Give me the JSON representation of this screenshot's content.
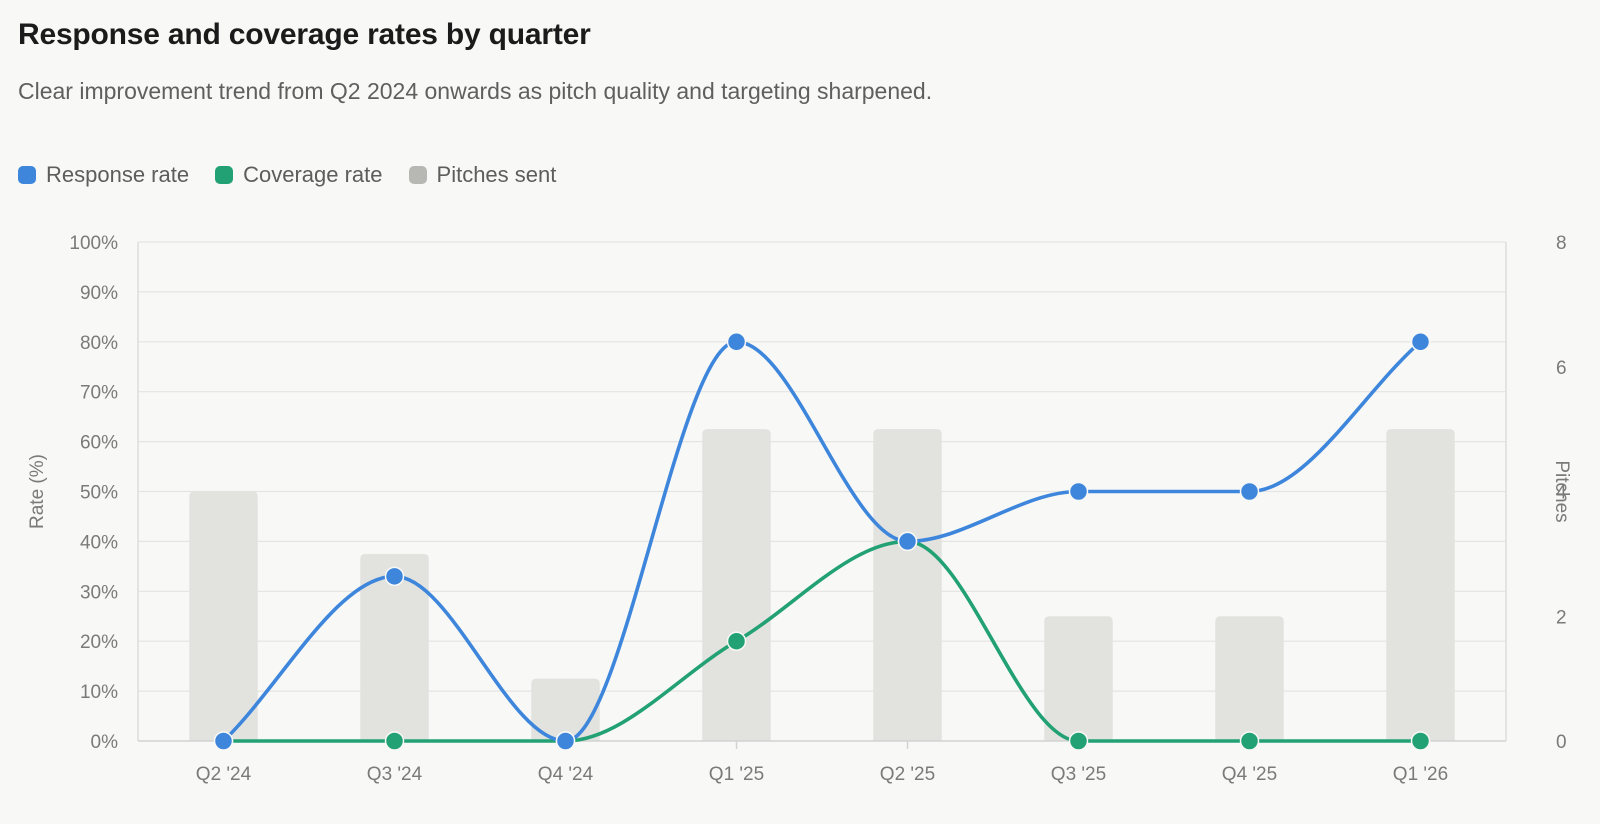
{
  "title": "Response and coverage rates by quarter",
  "subtitle": "Clear improvement trend from Q2 2024 onwards as pitch quality and targeting sharpened.",
  "legend": [
    {
      "label": "Response rate",
      "color": "#3d86dc"
    },
    {
      "label": "Coverage rate",
      "color": "#22a174"
    },
    {
      "label": "Pitches sent",
      "color": "#b7b7b3"
    }
  ],
  "chart_data": {
    "type": "bar",
    "categories": [
      "Q2 '24",
      "Q3 '24",
      "Q4 '24",
      "Q1 '25",
      "Q2 '25",
      "Q3 '25",
      "Q4 '25",
      "Q1 '26"
    ],
    "series": [
      {
        "name": "Response rate",
        "kind": "line",
        "axis": "left",
        "color": "#3d86dc",
        "values": [
          0,
          33,
          0,
          80,
          40,
          50,
          50,
          80
        ]
      },
      {
        "name": "Coverage rate",
        "kind": "line",
        "axis": "left",
        "color": "#22a174",
        "values": [
          0,
          0,
          0,
          20,
          40,
          0,
          0,
          0
        ]
      },
      {
        "name": "Pitches sent",
        "kind": "bar",
        "axis": "right",
        "color": "#e2e2df",
        "values": [
          4,
          3,
          1,
          5,
          5,
          2,
          2,
          5
        ]
      }
    ],
    "ylabel": "Rate (%)",
    "y2label": "Pitches",
    "ylim": [
      0,
      100
    ],
    "y2lim": [
      0,
      8
    ],
    "yticks": [
      "0%",
      "10%",
      "20%",
      "30%",
      "40%",
      "50%",
      "60%",
      "70%",
      "80%",
      "90%",
      "100%"
    ],
    "y2ticks": [
      "0",
      "2",
      "4",
      "6",
      "8"
    ],
    "grid": true,
    "legend_position": "top-left"
  }
}
